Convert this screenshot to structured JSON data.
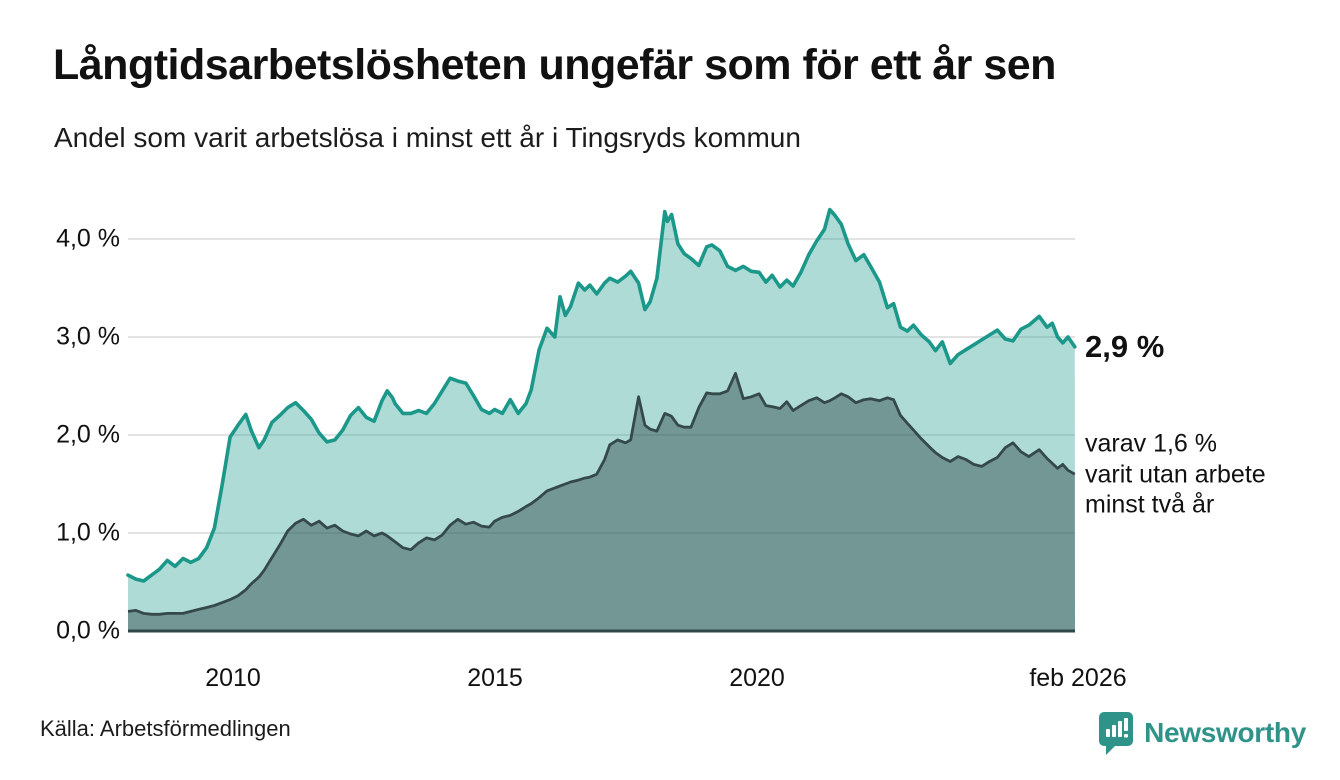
{
  "header": {
    "title": "Långtidsarbetslösheten ungefär som för ett år sen",
    "subtitle": "Andel som varit arbetslösa i minst ett år i Tingsryds kommun"
  },
  "annotations": {
    "latest_value": "2,9 %",
    "note_line1": "varav 1,6 %",
    "note_line2": "varit utan arbete",
    "note_line3": "minst två år"
  },
  "source": {
    "label": "Källa: Arbetsförmedlingen"
  },
  "brand": {
    "name": "Newsworthy",
    "color": "#2f9389"
  },
  "colors": {
    "line_primary": "#1b988a",
    "fill_primary": "rgba(27,152,138,0.35)",
    "line_secondary": "#35494b",
    "fill_secondary": "rgba(43,68,69,0.45)",
    "gridline": "#e3e3e3",
    "axis": "#30474a"
  },
  "chart_data": {
    "type": "area",
    "title": "Långtidsarbetslösheten ungefär som för ett år sen",
    "subtitle": "Andel som varit arbetslösa i minst ett år i Tingsryds kommun",
    "ylabel": "",
    "xlabel": "",
    "unit": "%",
    "ylim": [
      0,
      4.4
    ],
    "xlim": [
      2008.0,
      2026.083
    ],
    "grid": "horizontal",
    "legend_position": "none",
    "ytick_labels": [
      "4,0 %",
      "3,0 %",
      "2,0 %",
      "1,0 %",
      "0,0 %"
    ],
    "ytick_values": [
      4.0,
      3.0,
      2.0,
      1.0,
      0.0
    ],
    "xticks": [
      {
        "label": "2010",
        "value": 2010.0
      },
      {
        "label": "2015",
        "value": 2015.0
      },
      {
        "label": "2020",
        "value": 2020.0
      },
      {
        "label": "feb 2026",
        "value": 2026.083
      }
    ],
    "x": [
      2008.0,
      2008.15,
      2008.3,
      2008.45,
      2008.6,
      2008.75,
      2008.9,
      2009.05,
      2009.2,
      2009.35,
      2009.5,
      2009.65,
      2009.8,
      2009.95,
      2010.1,
      2010.25,
      2010.35,
      2010.5,
      2010.6,
      2010.75,
      2010.9,
      2011.05,
      2011.2,
      2011.35,
      2011.5,
      2011.65,
      2011.8,
      2011.95,
      2012.1,
      2012.25,
      2012.4,
      2012.55,
      2012.7,
      2012.85,
      2012.95,
      2013.05,
      2013.1,
      2013.25,
      2013.4,
      2013.55,
      2013.7,
      2013.85,
      2014.0,
      2014.15,
      2014.3,
      2014.45,
      2014.6,
      2014.75,
      2014.9,
      2015.0,
      2015.15,
      2015.3,
      2015.45,
      2015.6,
      2015.7,
      2015.85,
      2016.0,
      2016.15,
      2016.25,
      2016.35,
      2016.45,
      2016.6,
      2016.72,
      2016.82,
      2016.95,
      2017.1,
      2017.2,
      2017.35,
      2017.5,
      2017.6,
      2017.75,
      2017.87,
      2017.97,
      2018.1,
      2018.25,
      2018.3,
      2018.38,
      2018.5,
      2018.62,
      2018.75,
      2018.9,
      2019.05,
      2019.15,
      2019.3,
      2019.45,
      2019.6,
      2019.75,
      2019.9,
      2020.05,
      2020.18,
      2020.3,
      2020.45,
      2020.58,
      2020.7,
      2020.85,
      2021.0,
      2021.15,
      2021.3,
      2021.4,
      2021.5,
      2021.62,
      2021.75,
      2021.9,
      2022.05,
      2022.18,
      2022.35,
      2022.5,
      2022.62,
      2022.75,
      2022.88,
      2023.0,
      2023.15,
      2023.3,
      2023.42,
      2023.55,
      2023.7,
      2023.85,
      2024.0,
      2024.15,
      2024.3,
      2024.45,
      2024.6,
      2024.75,
      2024.9,
      2025.05,
      2025.2,
      2025.4,
      2025.55,
      2025.65,
      2025.75,
      2025.85,
      2025.95,
      2026.08
    ],
    "series": [
      {
        "name": "Andel arbetslösa minst ett år",
        "end_label": "2,9 %",
        "end_value": 2.9,
        "values": [
          0.57,
          0.53,
          0.51,
          0.57,
          0.63,
          0.72,
          0.66,
          0.74,
          0.7,
          0.74,
          0.85,
          1.05,
          1.5,
          1.98,
          2.1,
          2.21,
          2.05,
          1.87,
          1.95,
          2.13,
          2.2,
          2.28,
          2.33,
          2.25,
          2.16,
          2.02,
          1.93,
          1.95,
          2.05,
          2.2,
          2.28,
          2.18,
          2.14,
          2.35,
          2.45,
          2.38,
          2.32,
          2.22,
          2.22,
          2.25,
          2.22,
          2.32,
          2.45,
          2.58,
          2.55,
          2.53,
          2.4,
          2.26,
          2.22,
          2.26,
          2.22,
          2.36,
          2.22,
          2.32,
          2.46,
          2.87,
          3.09,
          3.0,
          3.41,
          3.22,
          3.31,
          3.55,
          3.48,
          3.53,
          3.44,
          3.55,
          3.6,
          3.56,
          3.62,
          3.67,
          3.55,
          3.28,
          3.36,
          3.6,
          4.28,
          4.18,
          4.25,
          3.95,
          3.85,
          3.8,
          3.73,
          3.92,
          3.94,
          3.88,
          3.72,
          3.68,
          3.72,
          3.67,
          3.66,
          3.56,
          3.63,
          3.51,
          3.58,
          3.52,
          3.66,
          3.84,
          3.98,
          4.1,
          4.3,
          4.24,
          4.15,
          3.95,
          3.78,
          3.84,
          3.72,
          3.56,
          3.3,
          3.34,
          3.1,
          3.06,
          3.12,
          3.02,
          2.95,
          2.86,
          2.95,
          2.73,
          2.82,
          2.87,
          2.92,
          2.97,
          3.02,
          3.07,
          2.98,
          2.96,
          3.08,
          3.12,
          3.21,
          3.1,
          3.14,
          3.0,
          2.94,
          3.0,
          2.9
        ]
      },
      {
        "name": "varav utan arbete minst två år",
        "end_label": "varav 1,6 % varit utan arbete minst två år",
        "end_value": 1.6,
        "values": [
          0.2,
          0.21,
          0.18,
          0.17,
          0.17,
          0.18,
          0.18,
          0.18,
          0.2,
          0.22,
          0.24,
          0.26,
          0.29,
          0.32,
          0.36,
          0.42,
          0.48,
          0.55,
          0.62,
          0.75,
          0.88,
          1.02,
          1.1,
          1.14,
          1.08,
          1.12,
          1.05,
          1.08,
          1.02,
          0.99,
          0.97,
          1.02,
          0.97,
          1.0,
          0.97,
          0.93,
          0.91,
          0.85,
          0.83,
          0.9,
          0.95,
          0.93,
          0.98,
          1.08,
          1.14,
          1.09,
          1.11,
          1.07,
          1.06,
          1.12,
          1.16,
          1.18,
          1.22,
          1.27,
          1.3,
          1.36,
          1.43,
          1.46,
          1.48,
          1.5,
          1.52,
          1.54,
          1.56,
          1.57,
          1.6,
          1.75,
          1.9,
          1.95,
          1.92,
          1.95,
          2.39,
          2.1,
          2.06,
          2.04,
          2.22,
          2.21,
          2.19,
          2.1,
          2.08,
          2.08,
          2.28,
          2.43,
          2.42,
          2.42,
          2.45,
          2.63,
          2.37,
          2.39,
          2.42,
          2.3,
          2.29,
          2.27,
          2.34,
          2.25,
          2.3,
          2.35,
          2.38,
          2.33,
          2.35,
          2.38,
          2.42,
          2.39,
          2.33,
          2.36,
          2.37,
          2.35,
          2.38,
          2.36,
          2.2,
          2.12,
          2.05,
          1.96,
          1.88,
          1.82,
          1.77,
          1.73,
          1.78,
          1.75,
          1.7,
          1.68,
          1.73,
          1.77,
          1.87,
          1.92,
          1.83,
          1.78,
          1.85,
          1.76,
          1.71,
          1.66,
          1.7,
          1.64,
          1.6
        ]
      }
    ]
  }
}
